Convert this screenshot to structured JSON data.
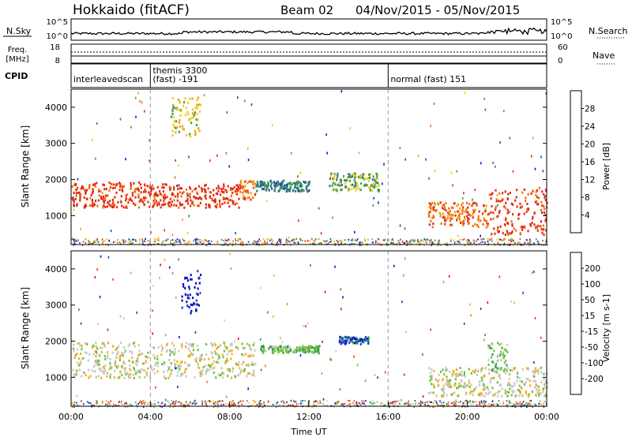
{
  "header": {
    "radar": "Hokkaido (fitACF)",
    "beam": "Beam 02",
    "date_range": "04/Nov/2015 - 05/Nov/2015"
  },
  "noise_panel": {
    "label": "N.Sky",
    "right_label": "N.Search",
    "tick_high": "10^5",
    "tick_low": "10^0"
  },
  "freq_panel": {
    "label_top": "Freq.",
    "label_unit": "[MHz]",
    "tick_high": "18",
    "tick_low": "8",
    "right_label": "Nave",
    "right_tick_high": "60",
    "right_tick_low": "0"
  },
  "cpid_panel": {
    "label": "CPID",
    "modes": [
      {
        "start_hour": 0,
        "line1": "interleavedscan",
        "line2": ""
      },
      {
        "start_hour": 4,
        "line1": "themis 3300",
        "line2": "(fast) -191"
      },
      {
        "start_hour": 16,
        "line1": "normal (fast) 151",
        "line2": ""
      }
    ]
  },
  "chart_data": [
    {
      "type": "heatmap",
      "quantity": "power",
      "ylabel": "Slant Range [km]",
      "ylim": [
        200,
        4500
      ],
      "yticks": [
        "1000",
        "2000",
        "3000",
        "4000"
      ],
      "xlim": [
        0,
        24
      ],
      "colorbar_label": "Power [dB]",
      "colorbar_ticks": [
        "4",
        "8",
        "12",
        "16",
        "20",
        "24",
        "28"
      ],
      "colorscale": [
        "#1010e0",
        "#1b4fb0",
        "#2f7a6e",
        "#4a9a50",
        "#e8d010",
        "#f5a010",
        "#f07010",
        "#e52a10"
      ],
      "regions": [
        {
          "t0": 0.0,
          "t1": 3.8,
          "r0": 1250,
          "r1": 1950,
          "level": 7
        },
        {
          "t0": 3.8,
          "t1": 8.5,
          "r0": 1250,
          "r1": 1900,
          "level": 7
        },
        {
          "t0": 8.5,
          "t1": 9.3,
          "r0": 1450,
          "r1": 2000,
          "level": 6
        },
        {
          "t0": 9.3,
          "t1": 12.0,
          "r0": 1700,
          "r1": 2000,
          "level": 2
        },
        {
          "t0": 13.0,
          "t1": 15.5,
          "r0": 1700,
          "r1": 2200,
          "level": 3
        },
        {
          "t0": 18.0,
          "t1": 21.0,
          "r0": 700,
          "r1": 1400,
          "level": 6
        },
        {
          "t0": 21.0,
          "t1": 24.0,
          "r0": 500,
          "r1": 1800,
          "level": 7
        },
        {
          "t0": 5.0,
          "t1": 6.5,
          "r0": 3200,
          "r1": 4300,
          "level": 4
        }
      ]
    },
    {
      "type": "heatmap",
      "quantity": "velocity",
      "ylabel": "Slant Range [km]",
      "ylim": [
        200,
        4500
      ],
      "yticks": [
        "1000",
        "2000",
        "3000",
        "4000"
      ],
      "xlim": [
        0,
        24
      ],
      "colorbar_label": "Velocity [m s-1]",
      "colorbar_ticks": [
        "-200",
        "-100",
        "-50",
        "-15",
        "15",
        "50",
        "100",
        "200"
      ],
      "colorscale": [
        "#e01010",
        "#f04010",
        "#f08010",
        "#f0b020",
        "#c8c8c8",
        "#70c040",
        "#2f9a4a",
        "#1a40c0",
        "#1010d0"
      ],
      "regions": [
        {
          "t0": 0.0,
          "t1": 9.3,
          "r0": 1000,
          "r1": 2000,
          "level": 4
        },
        {
          "t0": 5.5,
          "t1": 6.5,
          "r0": 2800,
          "r1": 4000,
          "level": 8
        },
        {
          "t0": 9.5,
          "t1": 12.5,
          "r0": 1700,
          "r1": 1900,
          "level": 5
        },
        {
          "t0": 13.5,
          "t1": 15.0,
          "r0": 1950,
          "r1": 2150,
          "level": 7
        },
        {
          "t0": 18.0,
          "t1": 24.0,
          "r0": 500,
          "r1": 1300,
          "level": 4
        },
        {
          "t0": 21.0,
          "t1": 22.0,
          "r0": 1200,
          "r1": 2000,
          "level": 5
        }
      ]
    }
  ],
  "time_axis": {
    "label": "Time UT",
    "ticks": [
      {
        "hour": 0,
        "label": "00:00"
      },
      {
        "hour": 4,
        "label": "04:00"
      },
      {
        "hour": 8,
        "label": "08:00"
      },
      {
        "hour": 12,
        "label": "12:00"
      },
      {
        "hour": 16,
        "label": "16:00"
      },
      {
        "hour": 20,
        "label": "20:00"
      },
      {
        "hour": 24,
        "label": "00:00"
      }
    ]
  }
}
